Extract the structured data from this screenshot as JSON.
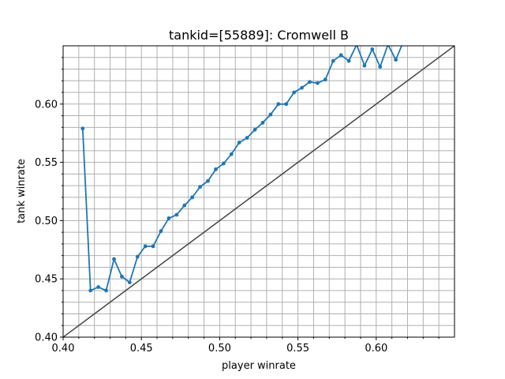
{
  "chart_data": {
    "type": "line",
    "title": "tankid=[55889]: Cromwell B",
    "xlabel": "player winrate",
    "ylabel": "tank winrate",
    "xlim": [
      0.4,
      0.65
    ],
    "ylim": [
      0.4,
      0.65
    ],
    "grid": true,
    "x_ticks": [
      "0.40",
      "0.45",
      "0.50",
      "0.55",
      "0.60"
    ],
    "y_ticks": [
      "0.40",
      "0.45",
      "0.50",
      "0.55",
      "0.60"
    ],
    "series": [
      {
        "color": "#1f77b4",
        "x": [
          0.4125,
          0.4175,
          0.4225,
          0.4275,
          0.4325,
          0.4375,
          0.4425,
          0.4475,
          0.4525,
          0.4575,
          0.4625,
          0.4675,
          0.4725,
          0.4775,
          0.4825,
          0.4875,
          0.4925,
          0.4975,
          0.5025,
          0.5075,
          0.5125,
          0.5175,
          0.5225,
          0.5275,
          0.5325,
          0.5375,
          0.5425,
          0.5475,
          0.5525,
          0.5575,
          0.5625,
          0.5675,
          0.5725,
          0.5775,
          0.5825,
          0.5875,
          0.5925,
          0.5975,
          0.6025,
          0.6075,
          0.6125,
          0.6175
        ],
        "values": [
          0.579,
          0.44,
          0.443,
          0.44,
          0.467,
          0.452,
          0.447,
          0.469,
          0.478,
          0.478,
          0.491,
          0.502,
          0.505,
          0.513,
          0.52,
          0.529,
          0.534,
          0.544,
          0.549,
          0.557,
          0.567,
          0.571,
          0.578,
          0.584,
          0.591,
          0.6,
          0.6,
          0.61,
          0.614,
          0.619,
          0.618,
          0.621,
          0.637,
          0.642,
          0.637,
          0.651,
          0.633,
          0.647,
          0.632,
          0.651,
          0.638,
          0.654
        ]
      },
      {
        "color": "#444444",
        "x": [
          0.4,
          0.65
        ],
        "values": [
          0.4,
          0.65
        ]
      }
    ]
  }
}
